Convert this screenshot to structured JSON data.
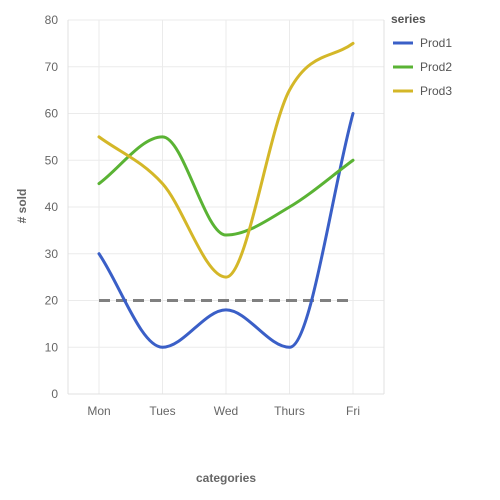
{
  "chart_data": {
    "type": "line",
    "categories": [
      "Mon",
      "Tues",
      "Wed",
      "Thurs",
      "Fri"
    ],
    "series": [
      {
        "name": "Prod1",
        "color": "#3a5fc7",
        "values": [
          30,
          10,
          18,
          10,
          60
        ]
      },
      {
        "name": "Prod2",
        "color": "#5ab334",
        "values": [
          45,
          55,
          34,
          40,
          50
        ]
      },
      {
        "name": "Prod3",
        "color": "#d4b728",
        "values": [
          55,
          45,
          25,
          65,
          75
        ]
      }
    ],
    "reference_line": {
      "value": 20,
      "color": "#808080",
      "style": "dashed"
    },
    "xlabel": "categories",
    "ylabel": "# sold",
    "ylim": [
      0,
      80
    ],
    "yticks": [
      0,
      10,
      20,
      30,
      40,
      50,
      60,
      70,
      80
    ],
    "grid": true,
    "legend": {
      "title": "series",
      "placement": "top-right"
    },
    "interpolation": "smooth"
  }
}
